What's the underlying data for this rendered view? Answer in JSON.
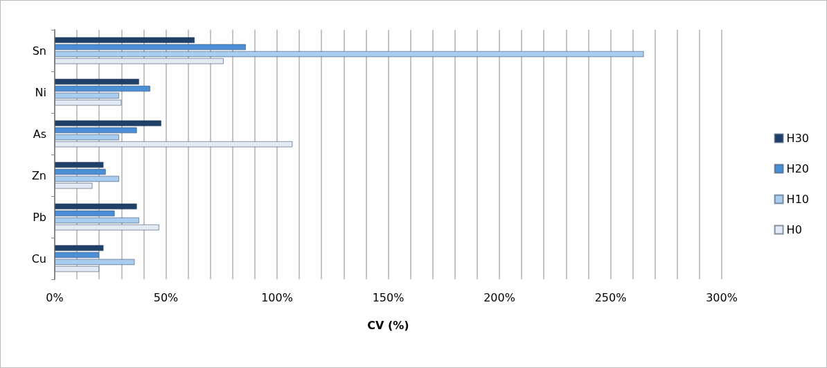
{
  "chart_data": {
    "type": "bar",
    "orientation": "horizontal",
    "xlabel": "CV (%)",
    "categories": [
      "Sn",
      "Ni",
      "As",
      "Zn",
      "Pb",
      "Cu"
    ],
    "series": [
      {
        "name": "H30",
        "color": "#1f3f66",
        "values": [
          63,
          38,
          48,
          22,
          37,
          22
        ]
      },
      {
        "name": "H20",
        "color": "#4a8fd6",
        "values": [
          86,
          43,
          37,
          23,
          27,
          20
        ]
      },
      {
        "name": "H10",
        "color": "#a8cdee",
        "values": [
          265,
          29,
          29,
          29,
          38,
          36
        ]
      },
      {
        "name": "H0",
        "color": "#e3eaf3",
        "values": [
          76,
          30,
          107,
          17,
          47,
          20
        ]
      }
    ],
    "xlim": [
      0,
      300
    ],
    "xticks": [
      {
        "value": 0,
        "label": "0%"
      },
      {
        "value": 10,
        "label": null
      },
      {
        "value": 20,
        "label": null
      },
      {
        "value": 30,
        "label": null
      },
      {
        "value": 40,
        "label": null
      },
      {
        "value": 50,
        "label": "50%"
      },
      {
        "value": 60,
        "label": null
      },
      {
        "value": 70,
        "label": null
      },
      {
        "value": 80,
        "label": null
      },
      {
        "value": 90,
        "label": null
      },
      {
        "value": 100,
        "label": "100%"
      },
      {
        "value": 110,
        "label": null
      },
      {
        "value": 120,
        "label": null
      },
      {
        "value": 130,
        "label": null
      },
      {
        "value": 140,
        "label": null
      },
      {
        "value": 150,
        "label": "150%"
      },
      {
        "value": 160,
        "label": null
      },
      {
        "value": 170,
        "label": null
      },
      {
        "value": 180,
        "label": null
      },
      {
        "value": 190,
        "label": null
      },
      {
        "value": 200,
        "label": "200%"
      },
      {
        "value": 210,
        "label": null
      },
      {
        "value": 220,
        "label": null
      },
      {
        "value": 230,
        "label": null
      },
      {
        "value": 240,
        "label": null
      },
      {
        "value": 250,
        "label": "250%"
      },
      {
        "value": 260,
        "label": null
      },
      {
        "value": 270,
        "label": null
      },
      {
        "value": 280,
        "label": null
      },
      {
        "value": 290,
        "label": null
      },
      {
        "value": 300,
        "label": "300%"
      }
    ],
    "grid": "x",
    "legend": "right"
  }
}
